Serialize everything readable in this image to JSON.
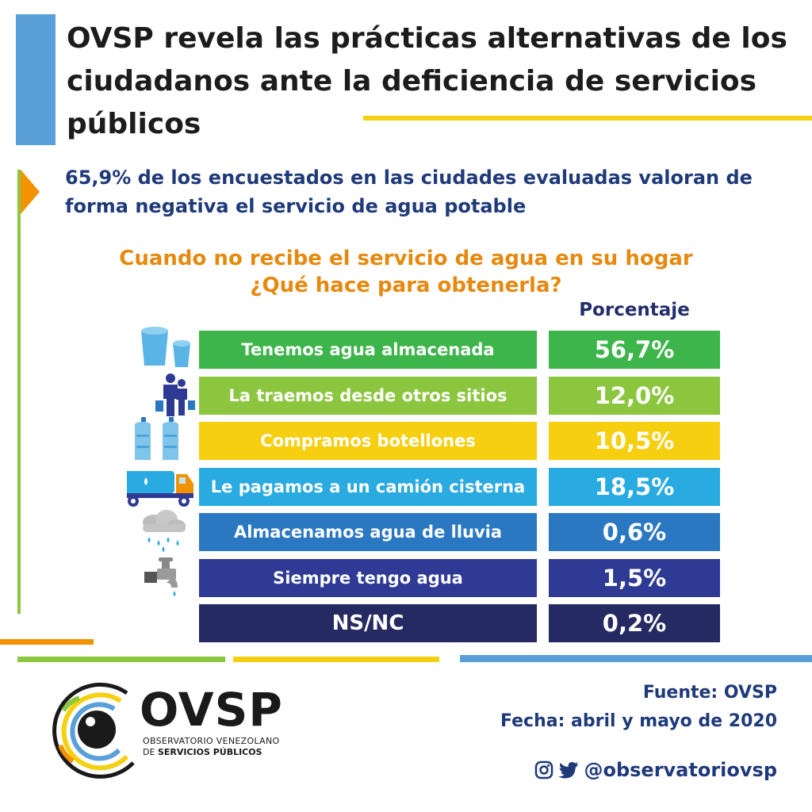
{
  "header": {
    "title": "OVSP revela las prácticas alternativas de los ciudadanos ante la deficiencia de servicios públicos"
  },
  "subtitle": "65,9% de los encuestados en las ciudades evaluadas valoran de forma negativa el servicio de agua potable",
  "question_line1": "Cuando no recibe el servicio de agua en su hogar",
  "question_line2": "¿Qué hace para obtenerla?",
  "chart_data": {
    "type": "table",
    "title": "Cuando no recibe el servicio de agua en su hogar ¿Qué hace para obtenerla?",
    "value_header": "Porcentaje",
    "categories": [
      "Tenemos agua almacenada",
      "La traemos desde otros sitios",
      "Compramos botellones",
      "Le pagamos a un camión cisterna",
      "Almacenamos agua de lluvia",
      "Siempre tengo agua",
      "NS/NC"
    ],
    "values": [
      56.7,
      12.0,
      10.5,
      18.5,
      0.6,
      1.5,
      0.2
    ],
    "value_labels": [
      "56,7%",
      "12,0%",
      "10,5%",
      "18,5%",
      "0,6%",
      "1,5%",
      "0,2%"
    ],
    "row_colors": [
      "#3db54a",
      "#8cc63f",
      "#f6cf10",
      "#29aae1",
      "#2b78c2",
      "#2e3a94",
      "#262a63"
    ],
    "row_icons": [
      "water-buckets-icon",
      "people-carrying-water-icon",
      "water-jugs-icon",
      "water-truck-icon",
      "rain-cloud-icon",
      "faucet-icon",
      ""
    ]
  },
  "footer": {
    "logo": "OVSP",
    "logo_sub_1": "OBSERVATORIO VENEZOLANO",
    "logo_sub_2a": "DE",
    "logo_sub_2b": "SERVICIOS PÚBLICOS",
    "source": "Fuente: OVSP",
    "date": "Fecha: abril y mayo de 2020",
    "social_handle": "@observatoriovsp"
  },
  "colors": {
    "title": "#1c1c1c",
    "subtitle": "#1f3a7a",
    "question": "#e6890f",
    "accent_blue": "#5aa0d8",
    "accent_yellow": "#f6cf10",
    "accent_green": "#8cc63f",
    "accent_orange": "#f39200"
  }
}
